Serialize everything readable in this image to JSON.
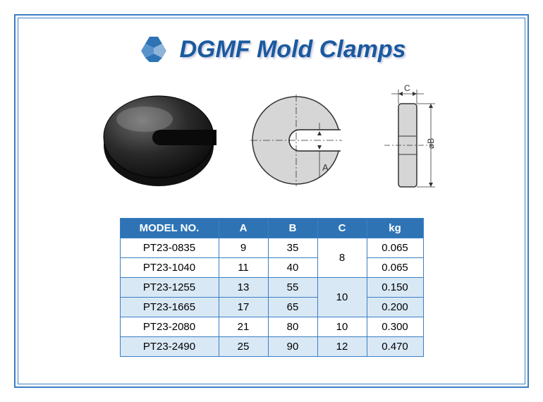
{
  "brand": {
    "title": "DGMF Mold Clamps",
    "logo_color_primary": "#2e74b5",
    "logo_color_secondary": "#8fb4d9"
  },
  "diagram": {
    "washer_color": "#2a2a2a",
    "tech_fill": "#d6d6d6",
    "tech_stroke": "#333333",
    "label_A": "A",
    "label_B": "⌀B",
    "label_C": "C"
  },
  "table": {
    "headers": [
      "MODEL NO.",
      "A",
      "B",
      "C",
      "kg"
    ],
    "rows": [
      {
        "model": "PT23-0835",
        "a": "9",
        "b": "35",
        "c": "8",
        "kg": "0.065",
        "alt": false,
        "c_rowspan": 2
      },
      {
        "model": "PT23-1040",
        "a": "11",
        "b": "40",
        "c": null,
        "kg": "0.065",
        "alt": false
      },
      {
        "model": "PT23-1255",
        "a": "13",
        "b": "55",
        "c": "10",
        "kg": "0.150",
        "alt": true,
        "c_rowspan": 2
      },
      {
        "model": "PT23-1665",
        "a": "17",
        "b": "65",
        "c": null,
        "kg": "0.200",
        "alt": true
      },
      {
        "model": "PT23-2080",
        "a": "21",
        "b": "80",
        "c": "10",
        "kg": "0.300",
        "alt": false,
        "c_rowspan": 1
      },
      {
        "model": "PT23-2490",
        "a": "25",
        "b": "90",
        "c": "12",
        "kg": "0.470",
        "alt": true,
        "c_rowspan": 1
      }
    ],
    "header_bg": "#2e74b5",
    "header_fg": "#ffffff",
    "border_color": "#3b7fc4",
    "alt_row_bg": "#d9e8f5"
  }
}
